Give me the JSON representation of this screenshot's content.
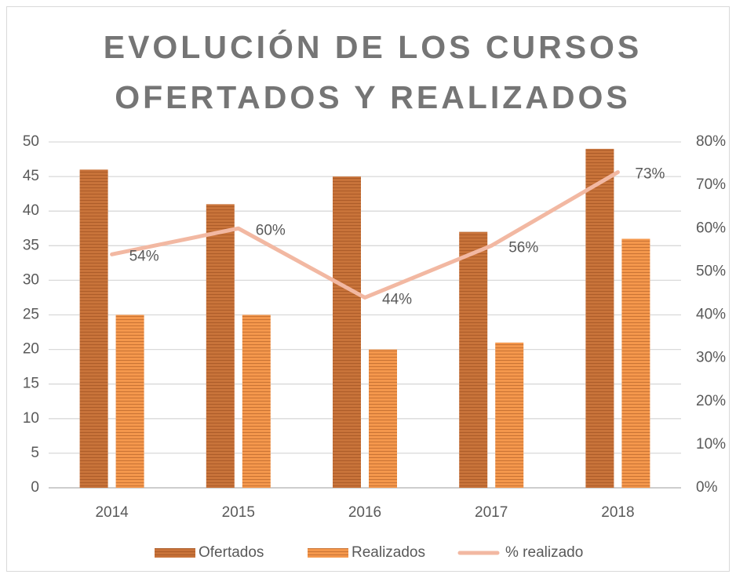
{
  "chart_data": {
    "type": "bar",
    "title": [
      "EVOLUCIÓN DE LOS CURSOS",
      "OFERTADOS Y REALIZADOS"
    ],
    "categories": [
      "2014",
      "2015",
      "2016",
      "2017",
      "2018"
    ],
    "series": [
      {
        "name": "Ofertados",
        "color": "#c8733a",
        "values": [
          46,
          41,
          45,
          37,
          49
        ]
      },
      {
        "name": "Realizados",
        "color": "#f4974c",
        "values": [
          25,
          25,
          20,
          21,
          36
        ]
      },
      {
        "name": "%  realizado",
        "color": "#f2b8a2",
        "type": "line",
        "axis": "y2",
        "values": [
          54,
          60,
          44,
          56,
          73
        ],
        "value_labels": [
          "54%",
          "60%",
          "44%",
          "56%",
          "73%"
        ]
      }
    ],
    "ylim": [
      0,
      50
    ],
    "yticks": [
      0,
      5,
      10,
      15,
      20,
      25,
      30,
      35,
      40,
      45,
      50
    ],
    "y2lim": [
      0,
      80
    ],
    "y2ticks": [
      {
        "value": 0,
        "label": "0%"
      },
      {
        "value": 10,
        "label": "10%"
      },
      {
        "value": 20,
        "label": "20%"
      },
      {
        "value": 30,
        "label": "30%"
      },
      {
        "value": 40,
        "label": "40%"
      },
      {
        "value": 50,
        "label": "50%"
      },
      {
        "value": 60,
        "label": "60%"
      },
      {
        "value": 70,
        "label": "70%"
      },
      {
        "value": 80,
        "label": "80%"
      }
    ],
    "grid": true,
    "legend": "bottom"
  }
}
